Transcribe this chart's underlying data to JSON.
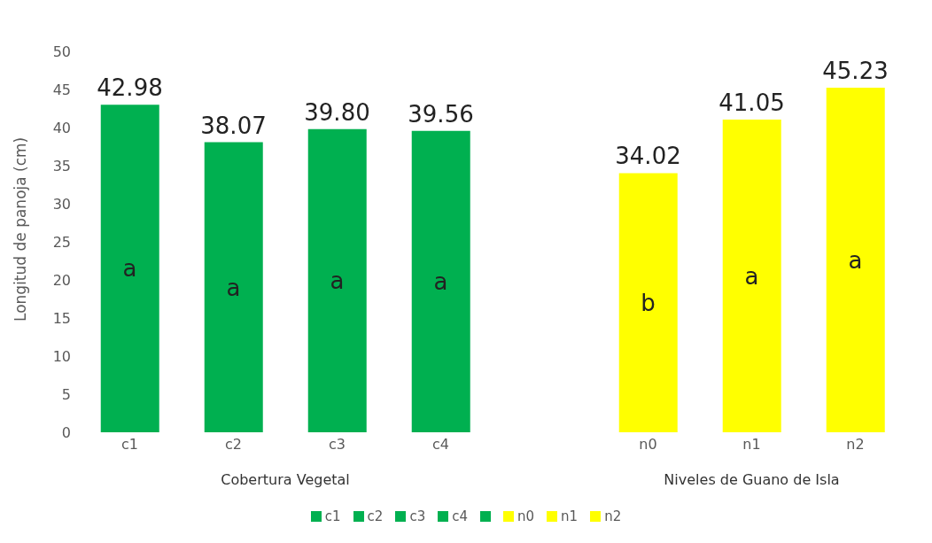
{
  "chart_data": {
    "type": "bar",
    "ylabel": "Longitud de panoja (cm)",
    "stacked": true,
    "categories": [
      "c1",
      "c2",
      "c3",
      "c4",
      null,
      "n0",
      "n1",
      "n2"
    ],
    "series": [
      {
        "name": "c1",
        "color": "#00b050",
        "values": [
          42.98,
          null,
          null,
          null,
          null,
          null,
          null,
          null
        ]
      },
      {
        "name": "c2",
        "color": "#00b050",
        "values": [
          null,
          38.07,
          null,
          null,
          null,
          null,
          null,
          null
        ]
      },
      {
        "name": "c3",
        "color": "#00b050",
        "values": [
          null,
          null,
          39.8,
          null,
          null,
          null,
          null,
          null
        ]
      },
      {
        "name": "c4",
        "color": "#00b050",
        "values": [
          null,
          null,
          null,
          39.56,
          null,
          null,
          null,
          null
        ]
      },
      {
        "color": "#00b050",
        "values": [
          null,
          null,
          null,
          null,
          null,
          null,
          null,
          null
        ]
      },
      {
        "name": "n0",
        "color": "#ffff00",
        "values": [
          null,
          null,
          null,
          null,
          null,
          34.02,
          null,
          null
        ]
      },
      {
        "name": "n1",
        "color": "#ffff00",
        "values": [
          null,
          null,
          null,
          null,
          null,
          null,
          41.05,
          null
        ]
      },
      {
        "name": "n2",
        "color": "#ffff00",
        "values": [
          null,
          null,
          null,
          null,
          null,
          null,
          null,
          45.23
        ]
      }
    ],
    "value_labels": [
      "42.98",
      "38.07",
      "39.80",
      "39.56",
      null,
      "34.02",
      "41.05",
      "45.23"
    ],
    "ylim": [
      0,
      50
    ],
    "yticks": [
      0,
      5,
      10,
      15,
      20,
      25,
      30,
      35,
      40,
      45,
      50
    ],
    "grid": false,
    "legend": "bottom",
    "annotations": [
      "a",
      "a",
      "a",
      "a",
      "b",
      "a",
      "a",
      "Cobertura Vegetal",
      "Niveles de Guano de Isla"
    ]
  }
}
